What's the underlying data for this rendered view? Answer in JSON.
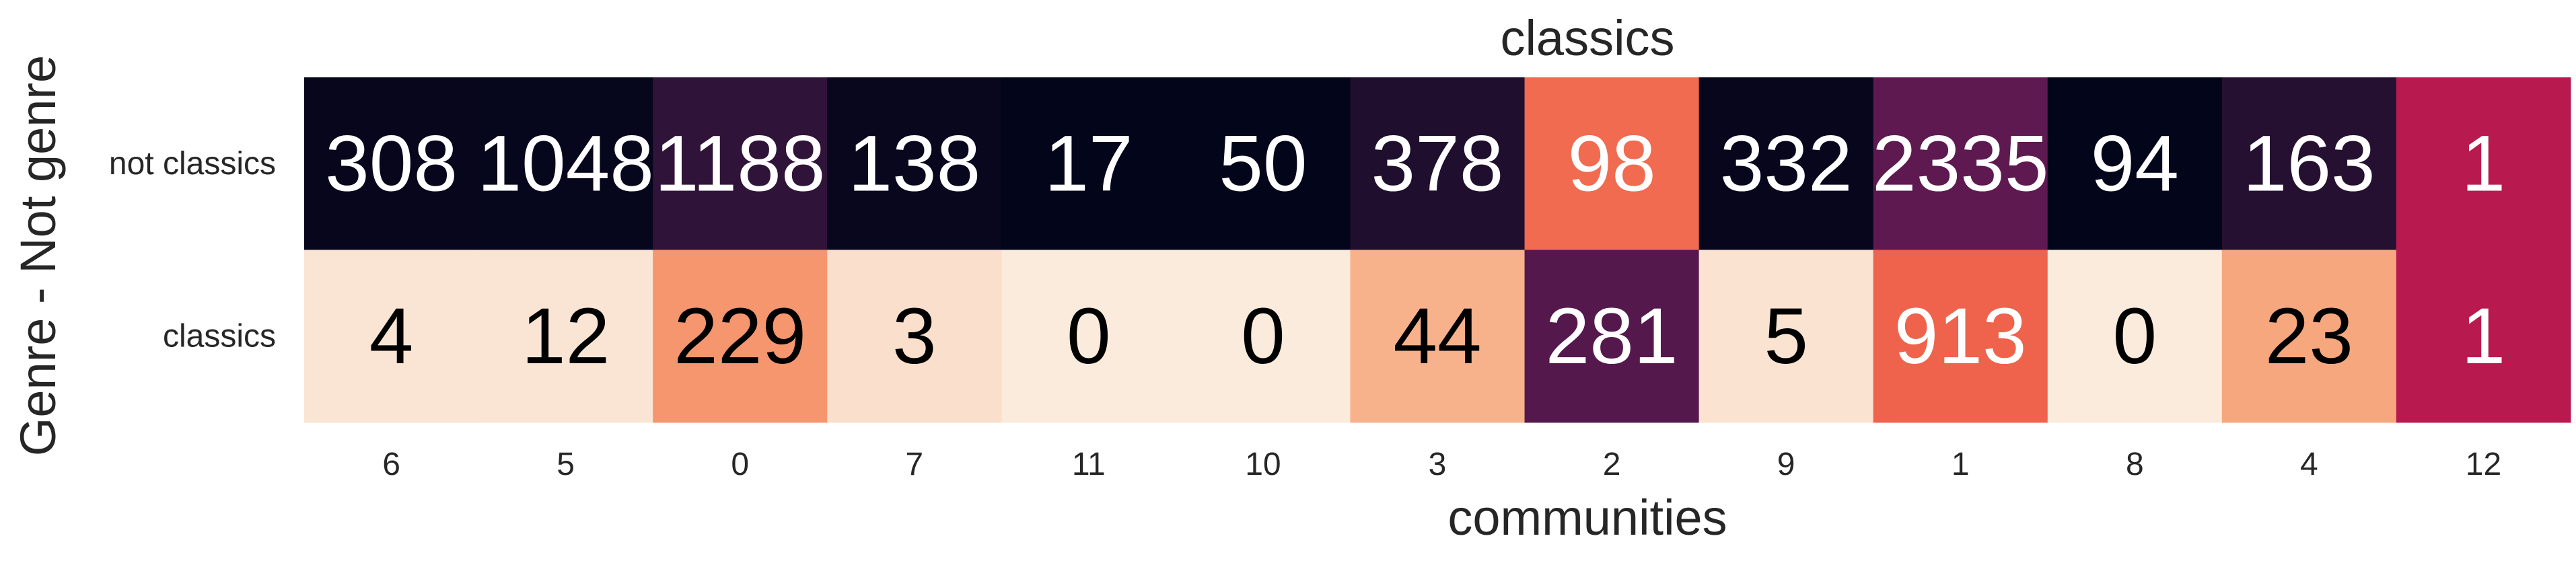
{
  "chart_data": {
    "type": "heatmap",
    "title": "classics",
    "xlabel": "communities",
    "ylabel": "Genre - Not genre",
    "x_categories": [
      "6",
      "5",
      "0",
      "7",
      "11",
      "10",
      "3",
      "2",
      "9",
      "1",
      "8",
      "4",
      "12"
    ],
    "y_categories": [
      "not classics",
      "classics"
    ],
    "values": [
      [
        308,
        1048,
        1188,
        138,
        17,
        50,
        378,
        98,
        332,
        2335,
        94,
        163,
        1
      ],
      [
        4,
        12,
        229,
        3,
        0,
        0,
        44,
        281,
        5,
        913,
        0,
        23,
        1
      ]
    ],
    "colormap": "rocket",
    "normalization": "column",
    "colorbar": false,
    "grid": false
  }
}
